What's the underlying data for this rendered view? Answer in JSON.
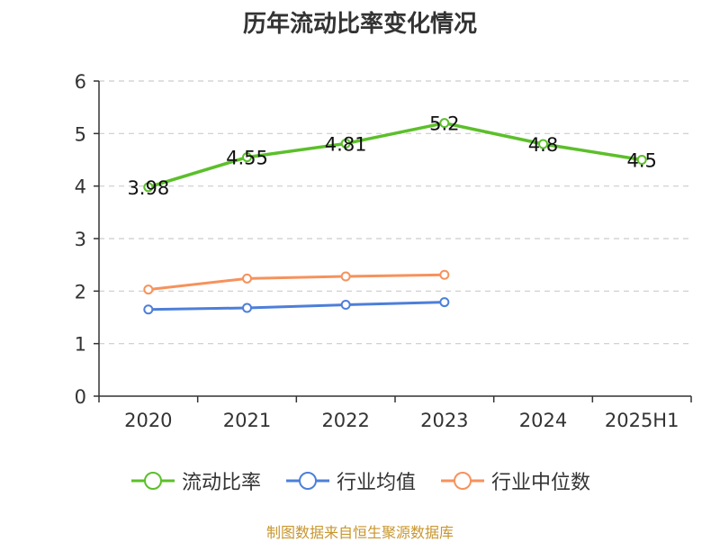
{
  "chart_data": {
    "type": "line",
    "title": "历年流动比率变化情况",
    "categories": [
      "2020",
      "2021",
      "2022",
      "2023",
      "2024",
      "2025H1"
    ],
    "ylim": [
      0,
      6
    ],
    "yticks": [
      0,
      1,
      2,
      3,
      4,
      5,
      6
    ],
    "grid": true,
    "legend_position": "bottom",
    "series": [
      {
        "name": "流动比率",
        "color": "#5cbf2a",
        "values": [
          3.98,
          4.55,
          4.81,
          5.2,
          4.8,
          4.5
        ],
        "labels": [
          "3.98",
          "4.55",
          "4.81",
          "5.2",
          "4.8",
          "4.5"
        ]
      },
      {
        "name": "行业均值",
        "color": "#4d7fd9",
        "values": [
          1.65,
          1.68,
          1.74,
          1.79,
          null,
          null
        ]
      },
      {
        "name": "行业中位数",
        "color": "#f6925c",
        "values": [
          2.03,
          2.24,
          2.28,
          2.31,
          null,
          null
        ]
      }
    ]
  },
  "footer": {
    "source": "制图数据来自恒生聚源数据库"
  }
}
